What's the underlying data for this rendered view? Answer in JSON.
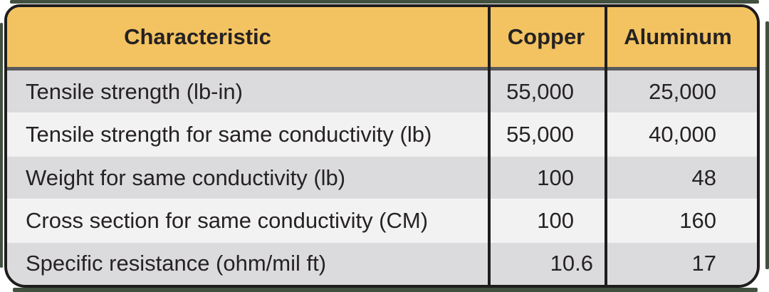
{
  "chart_data": {
    "type": "table",
    "columns": [
      "Characteristic",
      "Copper",
      "Aluminum"
    ],
    "rows": [
      [
        "Tensile strength (lb-in)",
        "55,000",
        "25,000"
      ],
      [
        "Tensile strength for same conductivity (lb)",
        "55,000",
        "40,000"
      ],
      [
        "Weight for same conductivity (lb)",
        "100",
        "48"
      ],
      [
        "Cross section for same conductivity (CM)",
        "100",
        "160"
      ],
      [
        "Specific resistance (ohm/mil ft)",
        "10.6",
        "17"
      ]
    ]
  },
  "colors": {
    "header_bg": "#F3C361",
    "row_dark": "#DBDBDD",
    "row_light": "#F2F2F3",
    "border": "#1E1C1D",
    "header_divider": "#5A5B5E",
    "frame_edge": "#42513F",
    "text": "#262223"
  }
}
